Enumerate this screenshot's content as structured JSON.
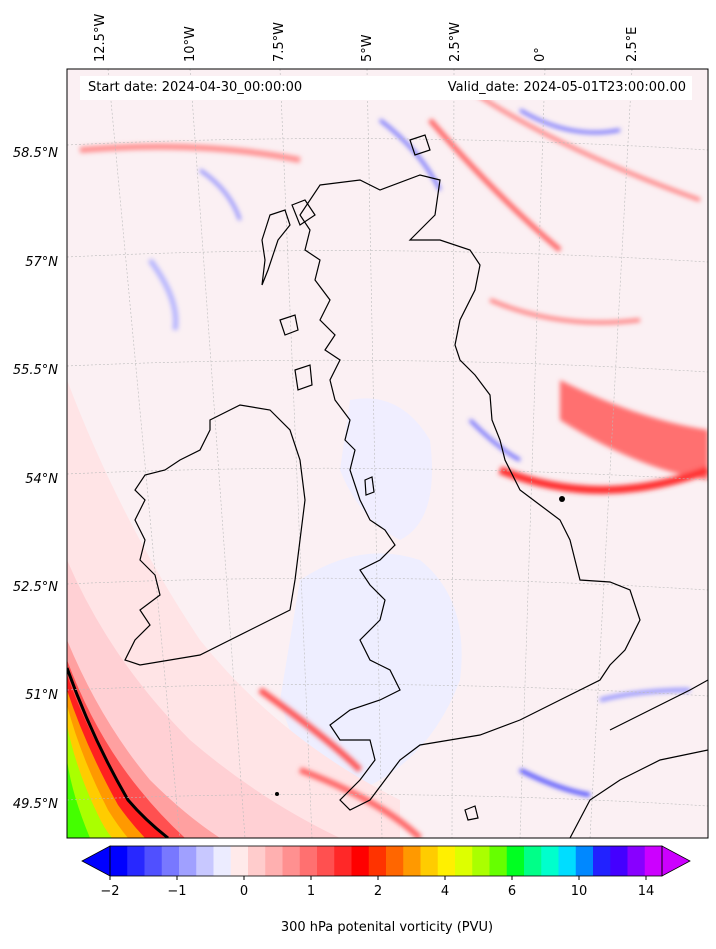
{
  "header": {
    "start_date": "Start date: 2024-04-30_00:00:00",
    "valid_date": "Valid_date: 2024-05-01T23:00:00.00"
  },
  "lon_labels": [
    "12.5°W",
    "10°W",
    "7.5°W",
    "5°W",
    "2.5°W",
    "0°",
    "2.5°E"
  ],
  "lat_labels": [
    "58.5°N",
    "57°N",
    "55.5°N",
    "54°N",
    "52.5°N",
    "51°N",
    "49.5°N"
  ],
  "colorbar": {
    "title": "300 hPa potenital vorticity (PVU)",
    "ticks": [
      "−2",
      "−1",
      "0",
      "1",
      "2",
      "4",
      "6",
      "10",
      "14"
    ],
    "colors": [
      "#0000ff",
      "#2828ff",
      "#5050ff",
      "#7878ff",
      "#a0a0ff",
      "#c8c8ff",
      "#ececff",
      "#ffeaea",
      "#ffcccc",
      "#ffb0b0",
      "#ff9090",
      "#ff7070",
      "#ff5050",
      "#ff2828",
      "#ff0000",
      "#ff3300",
      "#ff6600",
      "#ff9900",
      "#ffcc00",
      "#fff000",
      "#ddff00",
      "#aaff00",
      "#66ff00",
      "#00ff22",
      "#00ff88",
      "#00ffcc",
      "#00ddff",
      "#0088ff",
      "#2222ff",
      "#4400ff",
      "#8800ff",
      "#cc00ff"
    ]
  },
  "colors": {
    "background_field": "#fbf0f3",
    "coastline": "#000000",
    "high_pv_band": [
      "#ff8080",
      "#ff3030",
      "#ff6600",
      "#ffcc00",
      "#aaff00",
      "#44ff00"
    ]
  }
}
